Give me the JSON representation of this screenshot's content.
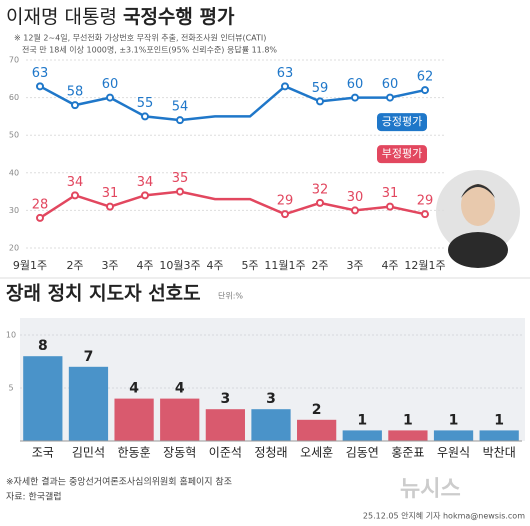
{
  "chart_data": [
    {
      "type": "line",
      "title": "이재명 대통령",
      "title_bold": "국정수행 평가",
      "subtitle": [
        "※ 12월 2~4일, 무선전화 가상번호 무작위 추출, 전화조사원 인터뷰(CATI)",
        "전국 만 18세 이상 1000명, ±3.1%포인트(95% 신뢰수준) 응답률 11.8%"
      ],
      "categories": [
        "9월1주",
        "2주",
        "3주",
        "4주",
        "10월3주",
        "4주",
        "5주",
        "11월1주",
        "2주",
        "3주",
        "4주",
        "12월1주"
      ],
      "series": [
        {
          "name": "긍정평가",
          "color": "#1f77c9",
          "values": [
            63,
            58,
            60,
            55,
            54,
            55,
            55,
            63,
            59,
            60,
            60,
            62
          ],
          "value_labels": [
            "63",
            "58",
            "60",
            "55",
            "54",
            null,
            null,
            "63",
            "59",
            "60",
            "60",
            "62"
          ]
        },
        {
          "name": "부정평가",
          "color": "#e2475f",
          "values": [
            28,
            34,
            31,
            34,
            35,
            33,
            33,
            29,
            32,
            30,
            31,
            29
          ],
          "value_labels": [
            "28",
            "34",
            "31",
            "34",
            "35",
            null,
            null,
            "29",
            "32",
            "30",
            "31",
            "29"
          ]
        }
      ],
      "ylim": [
        20,
        70
      ],
      "yticks": [
        20,
        30,
        40,
        50,
        60,
        70
      ],
      "grid": true
    },
    {
      "type": "bar",
      "title": "장래 정치 지도자 선호도",
      "unit": "단위:%",
      "categories": [
        "조국",
        "김민석",
        "한동훈",
        "장동혁",
        "이준석",
        "정청래",
        "오세훈",
        "김동연",
        "홍준표",
        "우원식",
        "박찬대"
      ],
      "values": [
        8,
        7,
        4,
        4,
        3,
        3,
        2,
        1,
        1,
        1,
        1
      ],
      "colors": [
        "#4a93c9",
        "#4a93c9",
        "#d95a6e",
        "#d95a6e",
        "#d95a6e",
        "#4a93c9",
        "#d95a6e",
        "#4a93c9",
        "#d95a6e",
        "#4a93c9",
        "#4a93c9"
      ],
      "ylim": [
        0,
        10
      ],
      "yticks": [
        5,
        10
      ],
      "grid": true
    }
  ],
  "footer": {
    "note": "※자세한 결과는 중앙선거여론조사심의위원회 홈페이지 참조",
    "source": "자료: 한국갤럽",
    "credit": "25.12.05 안지혜 기자 hokma@newsis.com",
    "logo": "뉴시스"
  }
}
